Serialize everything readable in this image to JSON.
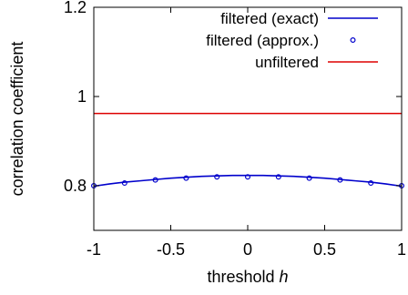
{
  "chart_data": {
    "type": "line",
    "xlabel": "threshold",
    "xlabel_var": "h",
    "ylabel": "correlation coefficient",
    "xlim": [
      -1,
      1
    ],
    "ylim": [
      0.7,
      1.2
    ],
    "xticks": [
      "-1",
      "-0.5",
      "0",
      "0.5",
      "1"
    ],
    "yticks": [
      "0.8",
      "1",
      "1.2"
    ],
    "grid": false,
    "legend_position": "top-right",
    "series": [
      {
        "name": "filtered (exact)",
        "kind": "line",
        "color": "#0000cc",
        "x": [
          -1,
          -0.9,
          -0.8,
          -0.7,
          -0.6,
          -0.5,
          -0.4,
          -0.3,
          -0.2,
          -0.1,
          0,
          0.1,
          0.2,
          0.3,
          0.4,
          0.5,
          0.6,
          0.7,
          0.8,
          0.9,
          1
        ],
        "y": [
          0.799,
          0.804,
          0.808,
          0.811,
          0.814,
          0.817,
          0.819,
          0.821,
          0.822,
          0.823,
          0.823,
          0.823,
          0.822,
          0.821,
          0.819,
          0.817,
          0.814,
          0.811,
          0.808,
          0.804,
          0.799
        ]
      },
      {
        "name": "filtered (approx.)",
        "kind": "points",
        "color": "#0000cc",
        "x": [
          -1,
          -0.8,
          -0.6,
          -0.4,
          -0.2,
          0,
          0.2,
          0.4,
          0.6,
          0.8,
          1
        ],
        "y": [
          0.8,
          0.806,
          0.813,
          0.817,
          0.82,
          0.82,
          0.82,
          0.817,
          0.813,
          0.806,
          0.8
        ]
      },
      {
        "name": "unfiltered",
        "kind": "line",
        "color": "#dd0000",
        "x": [
          -1,
          1
        ],
        "y": [
          0.962,
          0.962
        ]
      }
    ]
  }
}
